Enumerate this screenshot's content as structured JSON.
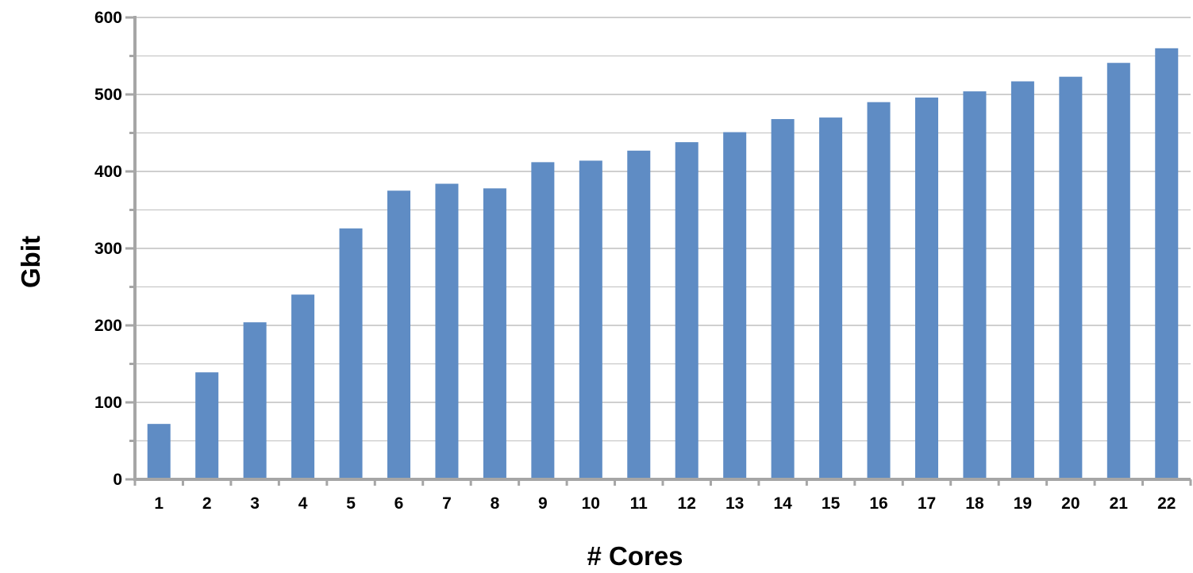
{
  "chart_data": {
    "type": "bar",
    "title": "",
    "xlabel": "# Cores",
    "ylabel": "Gbit",
    "categories": [
      "1",
      "2",
      "3",
      "4",
      "5",
      "6",
      "7",
      "8",
      "9",
      "10",
      "11",
      "12",
      "13",
      "14",
      "15",
      "16",
      "17",
      "18",
      "19",
      "20",
      "21",
      "22"
    ],
    "series": [
      {
        "values": [
          72,
          139,
          204,
          240,
          326,
          375,
          384,
          378,
          412,
          414,
          427,
          438,
          451,
          468,
          470,
          490,
          496,
          504,
          517,
          523,
          541,
          560
        ]
      }
    ],
    "ylim": [
      0,
      600
    ],
    "yticks": [
      "0",
      "100",
      "200",
      "300",
      "400",
      "500",
      "600"
    ],
    "grid": true,
    "legend": "none",
    "colors": {
      "bar": "#5F8CC4",
      "grid": "#BFBFBF",
      "axis": "#A6A6A6"
    }
  }
}
